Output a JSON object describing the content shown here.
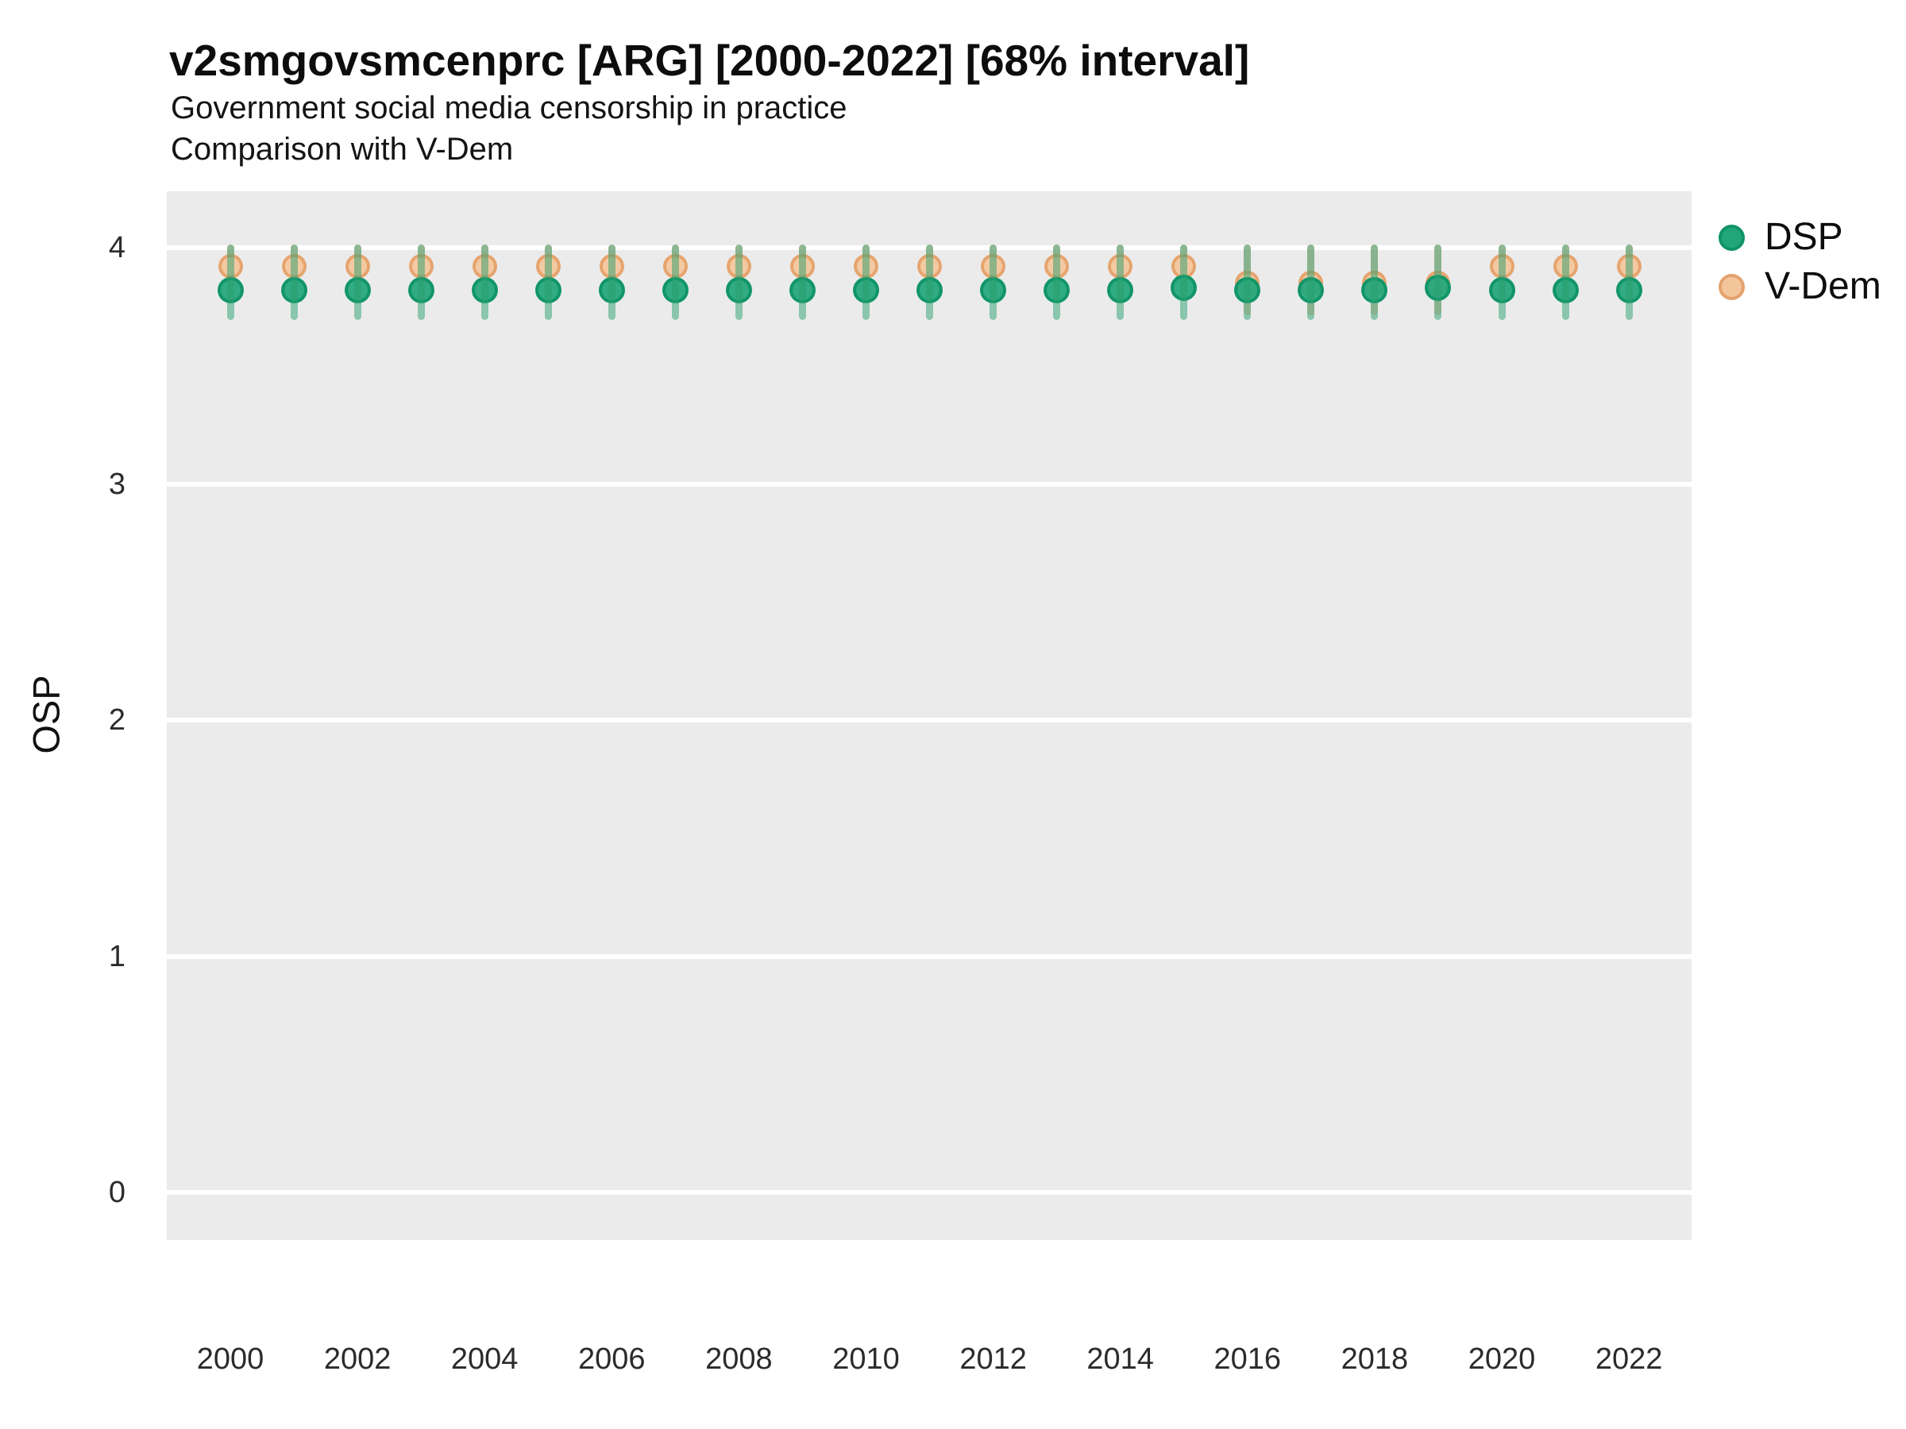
{
  "header": {
    "title": "v2smgovsmcenprc [ARG] [2000-2022] [68% interval]",
    "subtitle1": "Government social media censorship in practice",
    "subtitle2": "Comparison with V-Dem"
  },
  "chart_data": {
    "type": "scatter",
    "title": "v2smgovsmcenprc [ARG] [2000-2022] [68% interval]",
    "subtitle": "Government social media censorship in practice",
    "subtitle2": "Comparison with V-Dem",
    "xlabel": "",
    "ylabel": "OSP",
    "xlim": [
      1999,
      2023
    ],
    "ylim": [
      -0.2,
      4.24
    ],
    "xticks": [
      2000,
      2002,
      2004,
      2006,
      2008,
      2010,
      2012,
      2014,
      2016,
      2018,
      2020,
      2022
    ],
    "yticks": [
      0,
      1,
      2,
      3,
      4
    ],
    "grid": "major-horizontal-white-on-gray",
    "legend_position": "right",
    "panel_background": "#ebebeb",
    "gridline_color": "#ffffff",
    "series": [
      {
        "name": "DSP",
        "marker_fill": "#21a67a",
        "marker_stroke": "#109466",
        "interval_color": "rgba(42,160,112,0.50)",
        "interval_label": "68% interval"
      },
      {
        "name": "V-Dem",
        "marker_fill": "#f3c59b",
        "marker_stroke": "#e5a26c",
        "interval_color": "rgba(223,148,94,0.45)",
        "interval_label": "68% interval"
      }
    ],
    "points": [
      {
        "year": 2000,
        "dsp": 3.82,
        "dsp_lo": 3.71,
        "dsp_hi": 4.0,
        "vdem": 3.92,
        "vdem_lo": 3.8,
        "vdem_hi": 4.0
      },
      {
        "year": 2001,
        "dsp": 3.82,
        "dsp_lo": 3.71,
        "dsp_hi": 4.0,
        "vdem": 3.92,
        "vdem_lo": 3.8,
        "vdem_hi": 4.0
      },
      {
        "year": 2002,
        "dsp": 3.82,
        "dsp_lo": 3.71,
        "dsp_hi": 4.0,
        "vdem": 3.92,
        "vdem_lo": 3.8,
        "vdem_hi": 4.0
      },
      {
        "year": 2003,
        "dsp": 3.82,
        "dsp_lo": 3.71,
        "dsp_hi": 4.0,
        "vdem": 3.92,
        "vdem_lo": 3.8,
        "vdem_hi": 4.0
      },
      {
        "year": 2004,
        "dsp": 3.82,
        "dsp_lo": 3.71,
        "dsp_hi": 4.0,
        "vdem": 3.92,
        "vdem_lo": 3.8,
        "vdem_hi": 4.0
      },
      {
        "year": 2005,
        "dsp": 3.82,
        "dsp_lo": 3.71,
        "dsp_hi": 4.0,
        "vdem": 3.92,
        "vdem_lo": 3.8,
        "vdem_hi": 4.0
      },
      {
        "year": 2006,
        "dsp": 3.82,
        "dsp_lo": 3.71,
        "dsp_hi": 4.0,
        "vdem": 3.92,
        "vdem_lo": 3.8,
        "vdem_hi": 4.0
      },
      {
        "year": 2007,
        "dsp": 3.82,
        "dsp_lo": 3.71,
        "dsp_hi": 4.0,
        "vdem": 3.92,
        "vdem_lo": 3.8,
        "vdem_hi": 4.0
      },
      {
        "year": 2008,
        "dsp": 3.82,
        "dsp_lo": 3.71,
        "dsp_hi": 4.0,
        "vdem": 3.92,
        "vdem_lo": 3.8,
        "vdem_hi": 4.0
      },
      {
        "year": 2009,
        "dsp": 3.82,
        "dsp_lo": 3.71,
        "dsp_hi": 4.0,
        "vdem": 3.92,
        "vdem_lo": 3.8,
        "vdem_hi": 4.0
      },
      {
        "year": 2010,
        "dsp": 3.82,
        "dsp_lo": 3.71,
        "dsp_hi": 4.0,
        "vdem": 3.92,
        "vdem_lo": 3.8,
        "vdem_hi": 4.0
      },
      {
        "year": 2011,
        "dsp": 3.82,
        "dsp_lo": 3.71,
        "dsp_hi": 4.0,
        "vdem": 3.92,
        "vdem_lo": 3.8,
        "vdem_hi": 4.0
      },
      {
        "year": 2012,
        "dsp": 3.82,
        "dsp_lo": 3.71,
        "dsp_hi": 4.0,
        "vdem": 3.92,
        "vdem_lo": 3.8,
        "vdem_hi": 4.0
      },
      {
        "year": 2013,
        "dsp": 3.82,
        "dsp_lo": 3.71,
        "dsp_hi": 4.0,
        "vdem": 3.92,
        "vdem_lo": 3.8,
        "vdem_hi": 4.0
      },
      {
        "year": 2014,
        "dsp": 3.82,
        "dsp_lo": 3.71,
        "dsp_hi": 4.0,
        "vdem": 3.92,
        "vdem_lo": 3.8,
        "vdem_hi": 4.0
      },
      {
        "year": 2015,
        "dsp": 3.83,
        "dsp_lo": 3.71,
        "dsp_hi": 4.0,
        "vdem": 3.92,
        "vdem_lo": 3.8,
        "vdem_hi": 4.0
      },
      {
        "year": 2016,
        "dsp": 3.82,
        "dsp_lo": 3.71,
        "dsp_hi": 4.0,
        "vdem": 3.85,
        "vdem_lo": 3.73,
        "vdem_hi": 4.0
      },
      {
        "year": 2017,
        "dsp": 3.82,
        "dsp_lo": 3.71,
        "dsp_hi": 4.0,
        "vdem": 3.85,
        "vdem_lo": 3.73,
        "vdem_hi": 4.0
      },
      {
        "year": 2018,
        "dsp": 3.82,
        "dsp_lo": 3.71,
        "dsp_hi": 4.0,
        "vdem": 3.85,
        "vdem_lo": 3.73,
        "vdem_hi": 4.0
      },
      {
        "year": 2019,
        "dsp": 3.83,
        "dsp_lo": 3.71,
        "dsp_hi": 4.0,
        "vdem": 3.85,
        "vdem_lo": 3.73,
        "vdem_hi": 4.0
      },
      {
        "year": 2020,
        "dsp": 3.82,
        "dsp_lo": 3.71,
        "dsp_hi": 4.0,
        "vdem": 3.92,
        "vdem_lo": 3.8,
        "vdem_hi": 4.0
      },
      {
        "year": 2021,
        "dsp": 3.82,
        "dsp_lo": 3.71,
        "dsp_hi": 4.0,
        "vdem": 3.92,
        "vdem_lo": 3.8,
        "vdem_hi": 4.0
      },
      {
        "year": 2022,
        "dsp": 3.82,
        "dsp_lo": 3.71,
        "dsp_hi": 4.0,
        "vdem": 3.92,
        "vdem_lo": 3.8,
        "vdem_hi": 4.0
      }
    ]
  }
}
